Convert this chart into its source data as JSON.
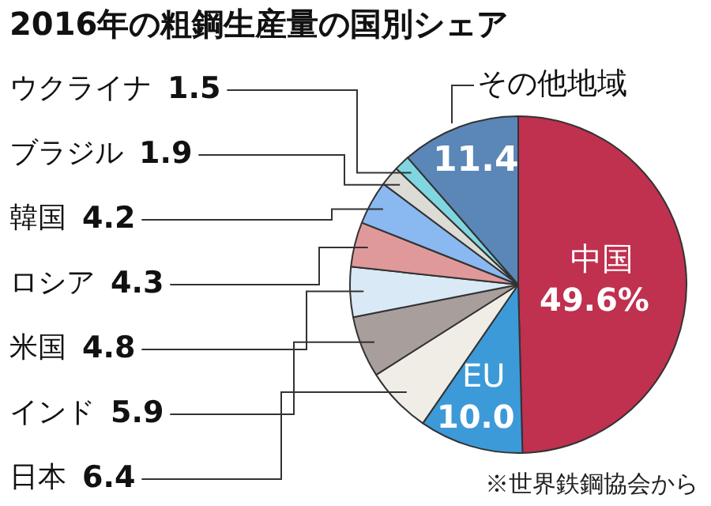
{
  "chart_data": {
    "type": "pie",
    "title": "2016年の粗鋼生産量の国別シェア",
    "categories": [
      "中国",
      "EU",
      "日本",
      "インド",
      "米国",
      "ロシア",
      "韓国",
      "ブラジル",
      "ウクライナ",
      "その他地域"
    ],
    "values": [
      49.6,
      10.0,
      6.4,
      5.9,
      4.8,
      4.3,
      4.2,
      1.9,
      1.5,
      11.4
    ],
    "colors": [
      "#c0304f",
      "#3d9ad8",
      "#efede6",
      "#a89e9c",
      "#d9e9f5",
      "#e0999a",
      "#8ab8f0",
      "#dddbd5",
      "#7fd6e0",
      "#5b86b8"
    ],
    "value_labels": [
      "49.6%",
      "10.0",
      "6.4",
      "5.9",
      "4.8",
      "4.3",
      "4.2",
      "1.9",
      "1.5",
      "11.4"
    ],
    "annotations": [
      "※世界鉄鋼協会から"
    ],
    "legend": false
  }
}
